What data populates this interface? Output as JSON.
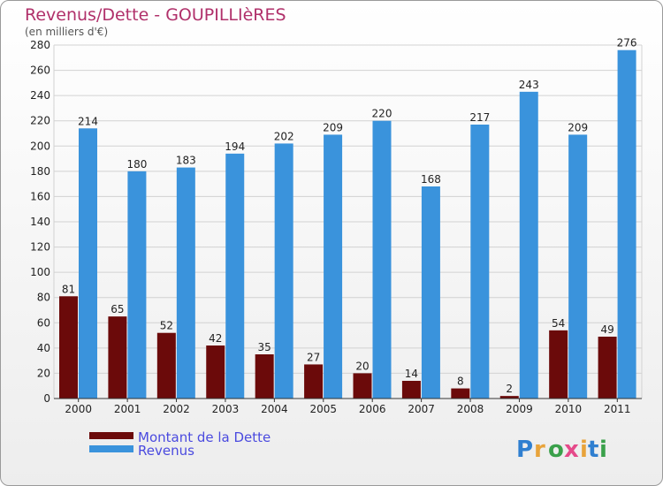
{
  "chart_data": {
    "type": "bar",
    "title": "Revenus/Dette - GOUPILLIèRES",
    "subtitle": "(en milliers d'€)",
    "categories": [
      "2000",
      "2001",
      "2002",
      "2003",
      "2004",
      "2005",
      "2006",
      "2007",
      "2008",
      "2009",
      "2010",
      "2011"
    ],
    "series": [
      {
        "name": "Montant de la Dette",
        "color": "#6b0a0a",
        "values": [
          81,
          65,
          52,
          42,
          35,
          27,
          20,
          14,
          8,
          2,
          54,
          49
        ]
      },
      {
        "name": "Revenus",
        "color": "#3a93dc",
        "values": [
          214,
          180,
          183,
          194,
          202,
          209,
          220,
          168,
          217,
          243,
          209,
          276
        ]
      }
    ],
    "ylim": [
      0,
      280
    ],
    "yticks": [
      0,
      20,
      40,
      60,
      80,
      100,
      120,
      140,
      160,
      180,
      200,
      220,
      240,
      260,
      280
    ],
    "grid": true,
    "legend": "bottom-left"
  },
  "brand": {
    "letters": [
      "P",
      "r",
      "o",
      "x",
      "i",
      "t",
      "i"
    ],
    "colors": [
      "#2f7fd0",
      "#e8a33a",
      "#3aa04a",
      "#e54a8a",
      "#e8a33a",
      "#2f7fd0",
      "#3aa04a"
    ]
  }
}
